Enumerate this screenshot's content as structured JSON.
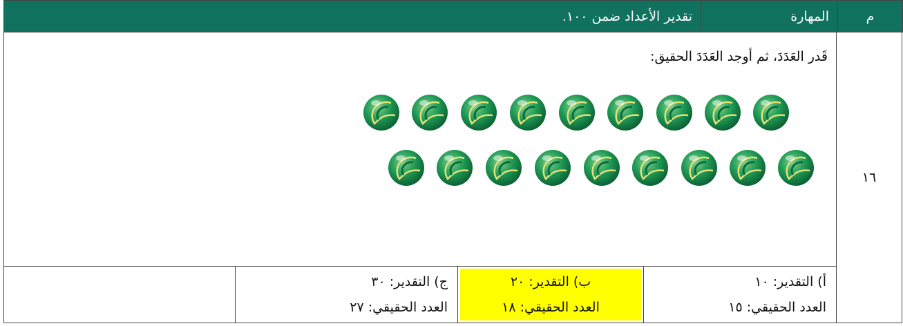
{
  "header": {
    "number_label": "م",
    "skill_label": "المهارة",
    "skill": "تقدير الأعداد ضمن ١٠٠."
  },
  "question": {
    "number": "١٦",
    "prompt": "قَدر العَدَدَ، ثم أوجد العَدَدَ الحقيق:",
    "options": [
      {
        "estimate": "أ) التقدير: ١٠",
        "actual": "العدد الحقيقي: ١٥"
      },
      {
        "estimate": "ب) التقدير: ٢٠",
        "actual": "العدد الحقيقي: ١٨"
      },
      {
        "estimate": "ج) التقدير: ٣٠",
        "actual": "العدد الحقيقي: ٢٧"
      }
    ]
  }
}
